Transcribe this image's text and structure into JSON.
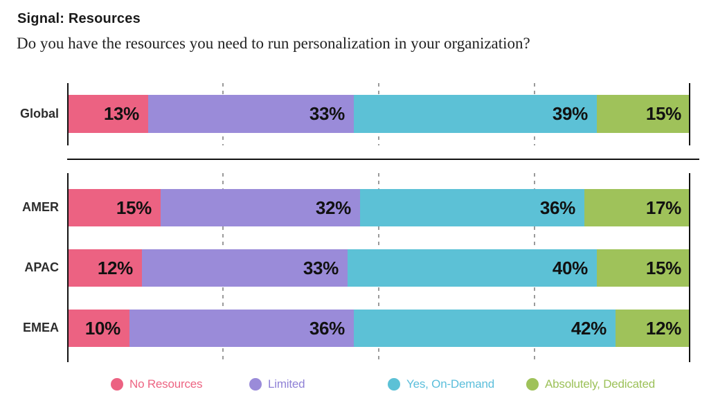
{
  "header": {
    "title": "Signal: Resources",
    "subtitle": "Do you have the resources you need to run personalization in your organization?"
  },
  "chart_data": {
    "type": "bar",
    "orientation": "horizontal",
    "stacked": true,
    "unit": "%",
    "xlim": [
      0,
      100
    ],
    "gridlines_percent": [
      25,
      50,
      75
    ],
    "grid": true,
    "legend_position": "bottom",
    "series_names": [
      "No Resources",
      "Limited",
      "Yes, On-Demand",
      "Absolutely, Dedicated"
    ],
    "colors": [
      "#EC6282",
      "#9A8BD9",
      "#5CC1D6",
      "#9FC25A"
    ],
    "groups": [
      {
        "name": "global-summary",
        "rows": [
          {
            "category": "Global",
            "values": [
              13,
              33,
              39,
              15
            ]
          }
        ]
      },
      {
        "name": "regions",
        "rows": [
          {
            "category": "AMER",
            "values": [
              15,
              32,
              36,
              17
            ]
          },
          {
            "category": "APAC",
            "values": [
              12,
              33,
              40,
              15
            ]
          },
          {
            "category": "EMEA",
            "values": [
              10,
              36,
              42,
              12
            ]
          }
        ]
      }
    ],
    "legend": [
      {
        "label": "No Resources",
        "color": "#EC6282",
        "text_color": "#ED6482"
      },
      {
        "label": "Limited",
        "color": "#9A8BD9",
        "text_color": "#8F81D6"
      },
      {
        "label": "Yes, On-Demand",
        "color": "#5CC1D6",
        "text_color": "#5BBEDB"
      },
      {
        "label": "Absolutely, Dedicated",
        "color": "#9FC25A",
        "text_color": "#9CC159"
      }
    ]
  }
}
